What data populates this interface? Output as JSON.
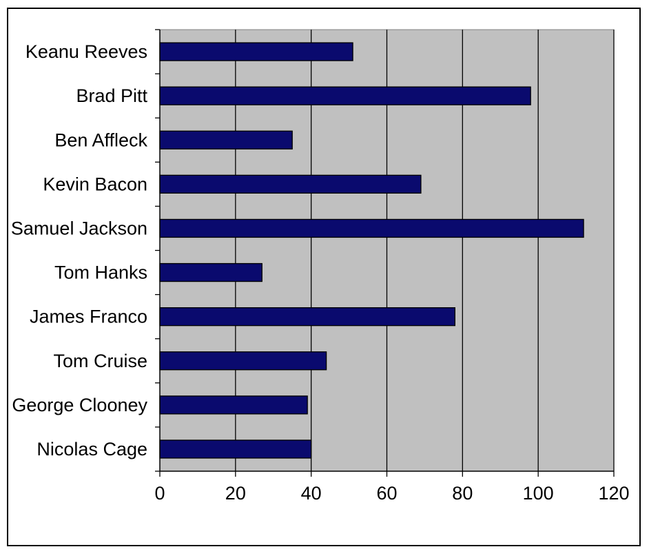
{
  "chart_data": {
    "type": "bar",
    "orientation": "horizontal",
    "title": "",
    "xlabel": "",
    "ylabel": "",
    "categories": [
      "Keanu Reeves",
      "Brad Pitt",
      "Ben Affleck",
      "Kevin Bacon",
      "Samuel Jackson",
      "Tom Hanks",
      "James Franco",
      "Tom Cruise",
      "George Clooney",
      "Nicolas Cage"
    ],
    "values": [
      51,
      98,
      35,
      69,
      112,
      27,
      78,
      44,
      39,
      40
    ],
    "xlim": [
      0,
      120
    ],
    "xticks": [
      "0",
      "20",
      "40",
      "60",
      "80",
      "100",
      "120"
    ],
    "grid": "vertical",
    "legend": "none",
    "colors": {
      "bar": "#0a0a6e",
      "plot_background": "#c0c0c0",
      "frame": "#000000"
    }
  }
}
